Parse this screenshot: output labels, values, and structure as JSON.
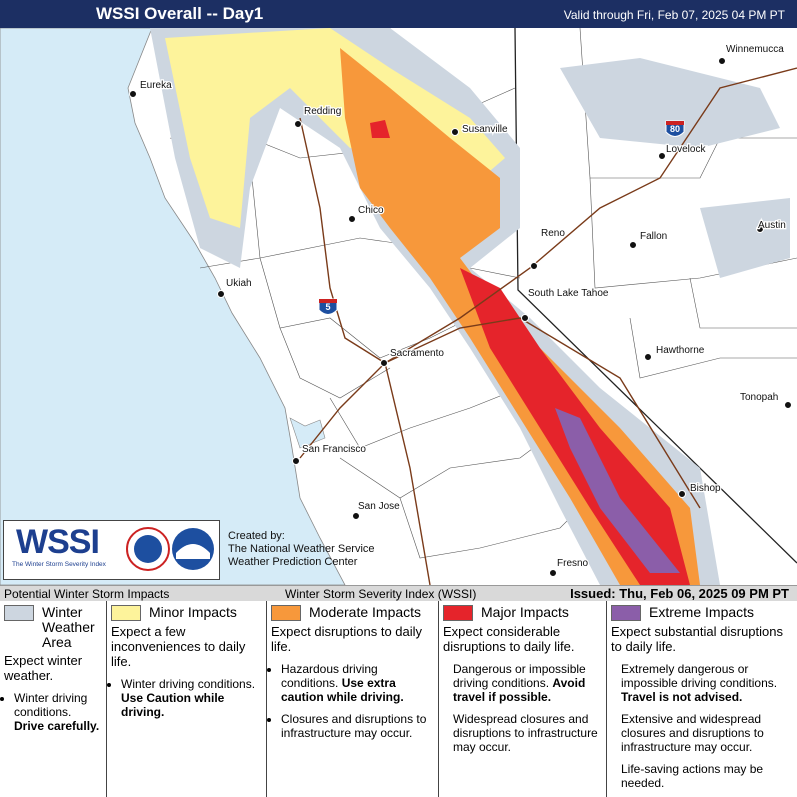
{
  "header": {
    "title": "WSSI Overall -- Day1",
    "valid": "Valid through Fri, Feb 07, 2025 04 PM PT"
  },
  "map": {
    "cities": [
      "Eureka",
      "Redding",
      "Susanville",
      "Winnemucca",
      "Lovelock",
      "Chico",
      "Reno",
      "Fallon",
      "Austin",
      "Ukiah",
      "South Lake Tahoe",
      "Sacramento",
      "Hawthorne",
      "Tonopah",
      "San Francisco",
      "Bishop",
      "San Jose",
      "Fresno"
    ],
    "shields": [
      "5",
      "80"
    ]
  },
  "logo": {
    "wssi": "WSSI",
    "tagline": "The Winter Storm Severity Index",
    "created": "Created by:",
    "org1": "The National Weather Service",
    "org2": "Weather Prediction Center"
  },
  "bar": {
    "left": "Potential Winter Storm Impacts",
    "center": "Winter Storm Severity Index (WSSI)",
    "right": "Issued: Thu, Feb 06, 2025 09 PM PT"
  },
  "legend": [
    {
      "title": "Winter Weather Area",
      "lead": "Expect winter weather.",
      "items": [
        {
          "normal": "Winter driving conditions.",
          "bold": "Drive carefully."
        }
      ]
    },
    {
      "title": "Minor Impacts",
      "lead": "Expect a few inconveniences to daily life.",
      "items": [
        {
          "normal": "Winter driving conditions.",
          "bold": "Use Caution while driving."
        }
      ]
    },
    {
      "title": "Moderate Impacts",
      "lead": "Expect disruptions to daily life.",
      "items": [
        {
          "normal": "Hazardous driving conditions.",
          "bold": "Use extra caution while driving."
        },
        {
          "normal": "Closures and disruptions to infrastructure may occur."
        }
      ]
    },
    {
      "title": "Major Impacts",
      "lead": "Expect considerable disruptions to daily life.",
      "items": [
        {
          "normal": "Dangerous or impossible driving conditions.",
          "bold": "Avoid travel if possible."
        },
        {
          "normal": "Widespread closures and disruptions to infrastructure may occur."
        }
      ]
    },
    {
      "title": "Extreme Impacts",
      "lead": "Expect substantial disruptions to daily life.",
      "items": [
        {
          "normal": "Extremely dangerous or impossible driving conditions.",
          "bold": "Travel is not advised."
        },
        {
          "normal": "Extensive and widespread closures and disruptions to infrastructure may occur."
        },
        {
          "normal": "Life-saving actions may be needed."
        }
      ]
    }
  ]
}
